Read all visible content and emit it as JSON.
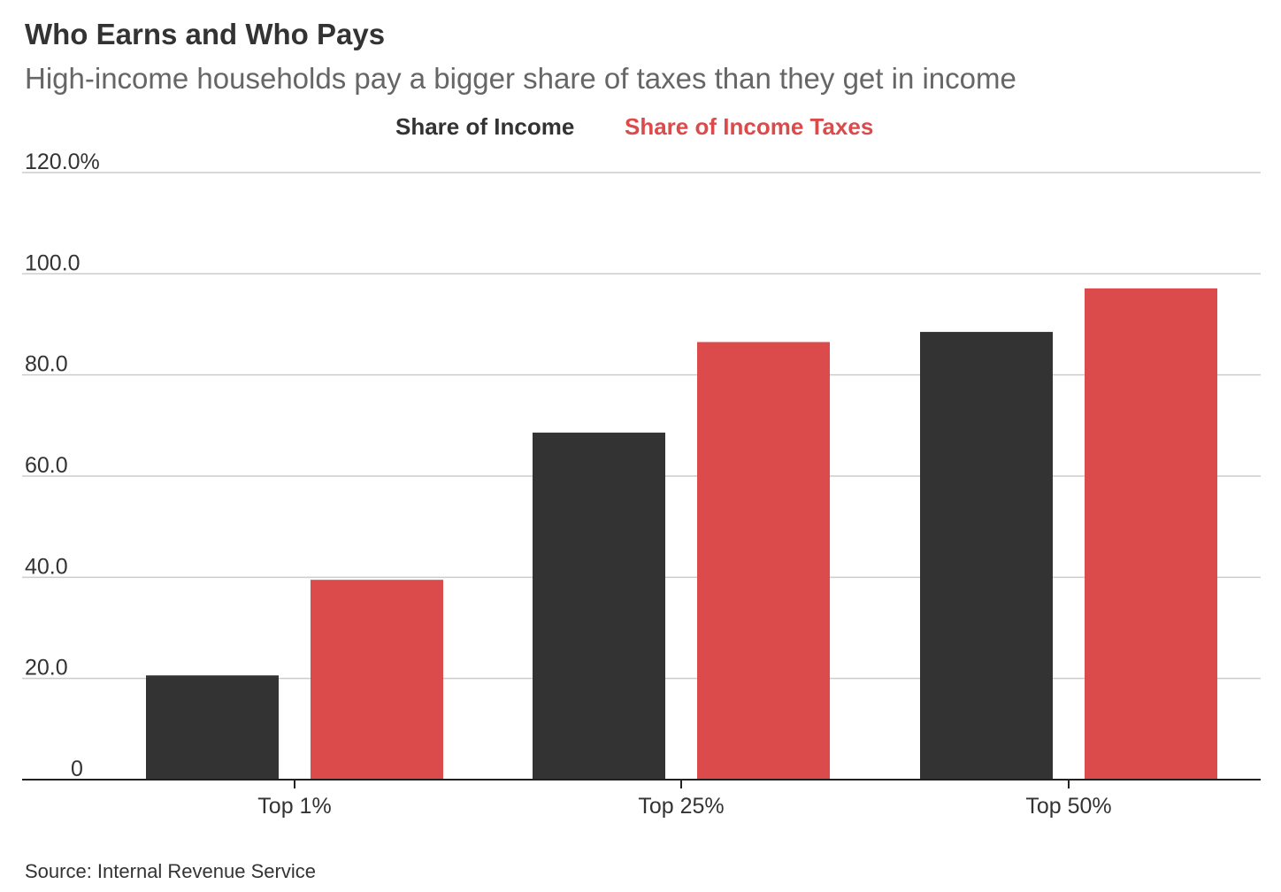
{
  "title": "Who Earns and Who Pays",
  "subtitle": "High-income households pay a bigger share of taxes than they get in income",
  "source": "Source: Internal Revenue Service",
  "colors": {
    "income": "#333333",
    "taxes": "#dc4b4b",
    "grid": "#cccccc",
    "axis": "#222222",
    "text": "#333333"
  },
  "chart_data": {
    "type": "bar",
    "categories": [
      "Top 1%",
      "Top 25%",
      "Top 50%"
    ],
    "series": [
      {
        "name": "Share of Income",
        "values": [
          20.6,
          68.6,
          88.5
        ]
      },
      {
        "name": "Share of Income Taxes",
        "values": [
          39.5,
          86.5,
          97.1
        ]
      }
    ],
    "yticks": [
      "0",
      "20.0",
      "40.0",
      "60.0",
      "80.0",
      "100.0",
      "120.0%"
    ],
    "ylim": [
      0,
      120
    ],
    "grid": true,
    "legend_position": "top-center",
    "title": "Who Earns and Who Pays",
    "subtitle": "High-income households pay a bigger share of taxes than they get in income",
    "xlabel": "",
    "ylabel": ""
  }
}
